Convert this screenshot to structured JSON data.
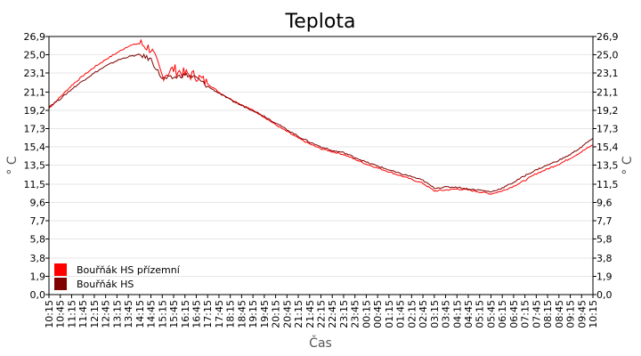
{
  "chart_data": {
    "type": "line",
    "title": "Teplota",
    "xlabel": "Čas",
    "ylabel": "° C",
    "ylabel_right": "° C",
    "y_ticks": [
      "0,0",
      "1,9",
      "3,8",
      "5,8",
      "7,7",
      "9,6",
      "11,5",
      "13,5",
      "15,4",
      "17,3",
      "19,2",
      "21,1",
      "23,1",
      "25,0",
      "26,9"
    ],
    "ylim": [
      0,
      26.9
    ],
    "grid": true,
    "legend_position": "bottom-left",
    "x_ticks": [
      "10:15",
      "10:45",
      "11:15",
      "11:45",
      "12:15",
      "12:45",
      "13:15",
      "13:45",
      "14:15",
      "14:45",
      "15:15",
      "15:45",
      "16:15",
      "16:45",
      "17:15",
      "17:45",
      "18:15",
      "18:45",
      "19:15",
      "19:45",
      "20:15",
      "20:45",
      "21:15",
      "21:45",
      "22:15",
      "22:45",
      "23:15",
      "23:45",
      "00:15",
      "00:45",
      "01:15",
      "01:45",
      "02:15",
      "02:45",
      "03:15",
      "03:45",
      "04:15",
      "04:45",
      "05:15",
      "05:45",
      "06:15",
      "06:45",
      "07:15",
      "07:45",
      "08:15",
      "08:45",
      "09:15",
      "09:45",
      "10:15"
    ],
    "x": [
      "10:15",
      "10:45",
      "11:15",
      "11:45",
      "12:15",
      "12:45",
      "13:15",
      "13:45",
      "14:15",
      "14:45",
      "15:15",
      "15:45",
      "16:15",
      "16:45",
      "17:15",
      "17:45",
      "18:15",
      "18:45",
      "19:15",
      "19:45",
      "20:15",
      "20:45",
      "21:15",
      "21:45",
      "22:15",
      "22:45",
      "23:15",
      "23:45",
      "00:15",
      "00:45",
      "01:15",
      "01:45",
      "02:15",
      "02:45",
      "03:15",
      "03:45",
      "04:15",
      "04:45",
      "05:15",
      "05:45",
      "06:15",
      "06:45",
      "07:15",
      "07:45",
      "08:15",
      "08:45",
      "09:15",
      "09:45",
      "10:15"
    ],
    "series": [
      {
        "name": "Bouřňák HS přízemní",
        "color": "#ff0000",
        "values": [
          19.4,
          20.6,
          21.8,
          22.8,
          23.7,
          24.5,
          25.2,
          25.9,
          26.2,
          25.6,
          22.8,
          23.5,
          23.0,
          22.8,
          22.0,
          21.1,
          20.4,
          19.8,
          19.2,
          18.5,
          17.7,
          17.0,
          16.3,
          15.7,
          15.2,
          14.9,
          14.6,
          14.1,
          13.6,
          13.2,
          12.8,
          12.4,
          12.0,
          11.6,
          10.8,
          10.9,
          11.0,
          10.9,
          10.7,
          10.5,
          10.8,
          11.3,
          11.9,
          12.6,
          13.1,
          13.6,
          14.2,
          14.9,
          15.6
        ]
      },
      {
        "name": "Bouřňák HS",
        "color": "#800000",
        "values": [
          19.6,
          20.4,
          21.4,
          22.3,
          23.1,
          23.8,
          24.4,
          24.8,
          25.0,
          24.5,
          22.5,
          22.6,
          22.9,
          22.6,
          21.7,
          21.0,
          20.3,
          19.7,
          19.2,
          18.6,
          17.9,
          17.2,
          16.5,
          15.9,
          15.4,
          15.0,
          14.8,
          14.3,
          13.8,
          13.4,
          13.0,
          12.6,
          12.3,
          11.9,
          11.1,
          11.2,
          11.2,
          11.0,
          10.9,
          10.7,
          11.1,
          11.7,
          12.4,
          13.0,
          13.5,
          14.0,
          14.6,
          15.4,
          16.3
        ]
      }
    ]
  }
}
